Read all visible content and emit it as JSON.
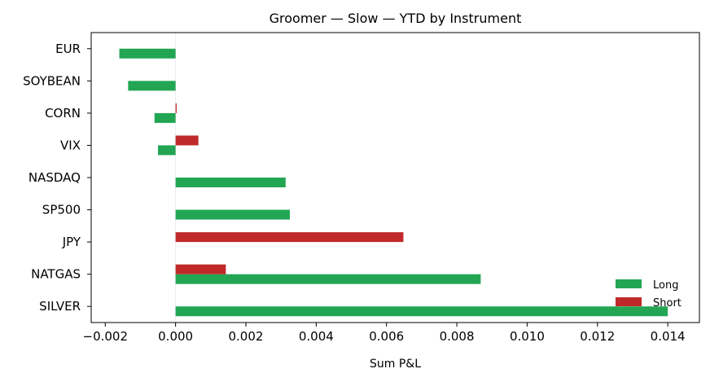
{
  "chart_data": {
    "type": "bar",
    "orientation": "horizontal",
    "title": "Groomer — Slow — YTD by Instrument",
    "xlabel": "Sum P&L",
    "ylabel": "",
    "xlim": [
      -0.0024,
      0.0149
    ],
    "xticks": [
      -0.002,
      0.0,
      0.002,
      0.004,
      0.006,
      0.008,
      0.01,
      0.012,
      0.014
    ],
    "xtick_labels": [
      "−0.002",
      "0.000",
      "0.002",
      "0.004",
      "0.006",
      "0.008",
      "0.010",
      "0.012",
      "0.014"
    ],
    "categories": [
      "EUR",
      "SOYBEAN",
      "CORN",
      "VIX",
      "NASDAQ",
      "SP500",
      "JPY",
      "NATGAS",
      "SILVER"
    ],
    "series": [
      {
        "name": "Long",
        "color": "#22a653",
        "values": [
          -0.0016,
          -0.00135,
          -0.0006,
          -0.0005,
          0.00313,
          0.00325,
          null,
          0.00868,
          0.014
        ]
      },
      {
        "name": "Short",
        "color": "#c0292a",
        "values": [
          null,
          null,
          3e-05,
          0.00065,
          null,
          null,
          0.00648,
          0.00143,
          null
        ]
      }
    ],
    "legend_position": "lower-right",
    "grid": false
  }
}
